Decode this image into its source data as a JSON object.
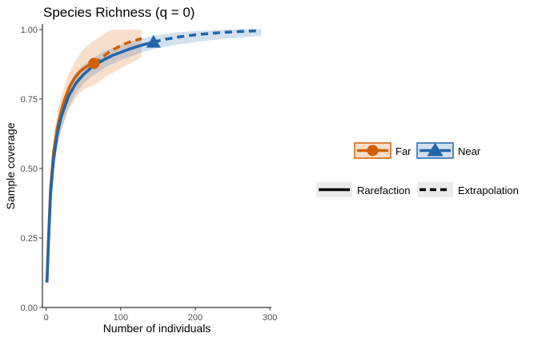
{
  "chart_data": {
    "type": "line",
    "title": "Species Richness (q = 0)",
    "xlabel": "Number of individuals",
    "ylabel": "Sample coverage",
    "xlim": [
      -5,
      302
    ],
    "ylim": [
      0,
      1.02
    ],
    "x_ticks": [
      0,
      100,
      200,
      300
    ],
    "y_ticks": [
      0.0,
      0.25,
      0.5,
      0.75,
      1.0
    ],
    "x_tick_labels": [
      "0",
      "100",
      "200",
      "300"
    ],
    "y_tick_labels": [
      "0.00",
      "0.25",
      "0.50",
      "0.75",
      "1.00"
    ],
    "grid": false,
    "legend_position": "right",
    "series": [
      {
        "name": "Far",
        "color": "#D55E00",
        "marker": "circle",
        "reference_point": {
          "x": 64,
          "y": 0.878
        },
        "rarefaction": [
          [
            1,
            0.09
          ],
          [
            3,
            0.24
          ],
          [
            6,
            0.43
          ],
          [
            10,
            0.56
          ],
          [
            15,
            0.645
          ],
          [
            20,
            0.705
          ],
          [
            25,
            0.75
          ],
          [
            30,
            0.785
          ],
          [
            35,
            0.812
          ],
          [
            40,
            0.832
          ],
          [
            45,
            0.848
          ],
          [
            50,
            0.859
          ],
          [
            55,
            0.868
          ],
          [
            60,
            0.874
          ],
          [
            64,
            0.878
          ]
        ],
        "extrapolation": [
          [
            64,
            0.878
          ],
          [
            75,
            0.9
          ],
          [
            85,
            0.92
          ],
          [
            95,
            0.935
          ],
          [
            105,
            0.948
          ],
          [
            115,
            0.958
          ],
          [
            128,
            0.967
          ]
        ],
        "ci_lower": [
          [
            1,
            0.06
          ],
          [
            3,
            0.2
          ],
          [
            6,
            0.38
          ],
          [
            10,
            0.5
          ],
          [
            15,
            0.58
          ],
          [
            20,
            0.635
          ],
          [
            30,
            0.71
          ],
          [
            40,
            0.755
          ],
          [
            50,
            0.785
          ],
          [
            64,
            0.8
          ],
          [
            80,
            0.83
          ],
          [
            100,
            0.86
          ],
          [
            128,
            0.9
          ]
        ],
        "ci_upper": [
          [
            1,
            0.12
          ],
          [
            3,
            0.28
          ],
          [
            6,
            0.48
          ],
          [
            10,
            0.62
          ],
          [
            15,
            0.7
          ],
          [
            20,
            0.76
          ],
          [
            30,
            0.84
          ],
          [
            40,
            0.89
          ],
          [
            50,
            0.93
          ],
          [
            64,
            0.96
          ],
          [
            80,
            0.99
          ],
          [
            90,
            1.0
          ],
          [
            128,
            1.0
          ]
        ]
      },
      {
        "name": "Near",
        "color": "#2166AC",
        "marker": "triangle",
        "reference_point": {
          "x": 144,
          "y": 0.955
        },
        "rarefaction": [
          [
            1,
            0.09
          ],
          [
            3,
            0.23
          ],
          [
            6,
            0.41
          ],
          [
            10,
            0.535
          ],
          [
            15,
            0.625
          ],
          [
            20,
            0.685
          ],
          [
            30,
            0.76
          ],
          [
            40,
            0.807
          ],
          [
            50,
            0.838
          ],
          [
            60,
            0.862
          ],
          [
            70,
            0.88
          ],
          [
            80,
            0.895
          ],
          [
            90,
            0.908
          ],
          [
            100,
            0.918
          ],
          [
            110,
            0.928
          ],
          [
            120,
            0.937
          ],
          [
            130,
            0.945
          ],
          [
            144,
            0.955
          ]
        ],
        "extrapolation": [
          [
            144,
            0.955
          ],
          [
            160,
            0.965
          ],
          [
            180,
            0.974
          ],
          [
            200,
            0.981
          ],
          [
            220,
            0.986
          ],
          [
            240,
            0.99
          ],
          [
            260,
            0.993
          ],
          [
            288,
            0.996
          ]
        ],
        "ci_lower": [
          [
            1,
            0.06
          ],
          [
            3,
            0.19
          ],
          [
            6,
            0.37
          ],
          [
            10,
            0.49
          ],
          [
            15,
            0.58
          ],
          [
            20,
            0.64
          ],
          [
            30,
            0.72
          ],
          [
            40,
            0.77
          ],
          [
            50,
            0.805
          ],
          [
            60,
            0.83
          ],
          [
            80,
            0.865
          ],
          [
            100,
            0.89
          ],
          [
            120,
            0.91
          ],
          [
            144,
            0.93
          ],
          [
            170,
            0.943
          ],
          [
            200,
            0.955
          ],
          [
            240,
            0.967
          ],
          [
            288,
            0.977
          ]
        ],
        "ci_upper": [
          [
            1,
            0.12
          ],
          [
            3,
            0.27
          ],
          [
            6,
            0.45
          ],
          [
            10,
            0.58
          ],
          [
            15,
            0.67
          ],
          [
            20,
            0.73
          ],
          [
            30,
            0.8
          ],
          [
            40,
            0.845
          ],
          [
            50,
            0.872
          ],
          [
            60,
            0.893
          ],
          [
            80,
            0.925
          ],
          [
            100,
            0.945
          ],
          [
            120,
            0.962
          ],
          [
            144,
            0.978
          ],
          [
            170,
            0.988
          ],
          [
            200,
            0.995
          ],
          [
            240,
            1.0
          ],
          [
            288,
            1.002
          ]
        ]
      }
    ],
    "linetype_legend": [
      {
        "label": "Rarefaction",
        "style": "solid"
      },
      {
        "label": "Extrapolation",
        "style": "dashed"
      }
    ]
  }
}
